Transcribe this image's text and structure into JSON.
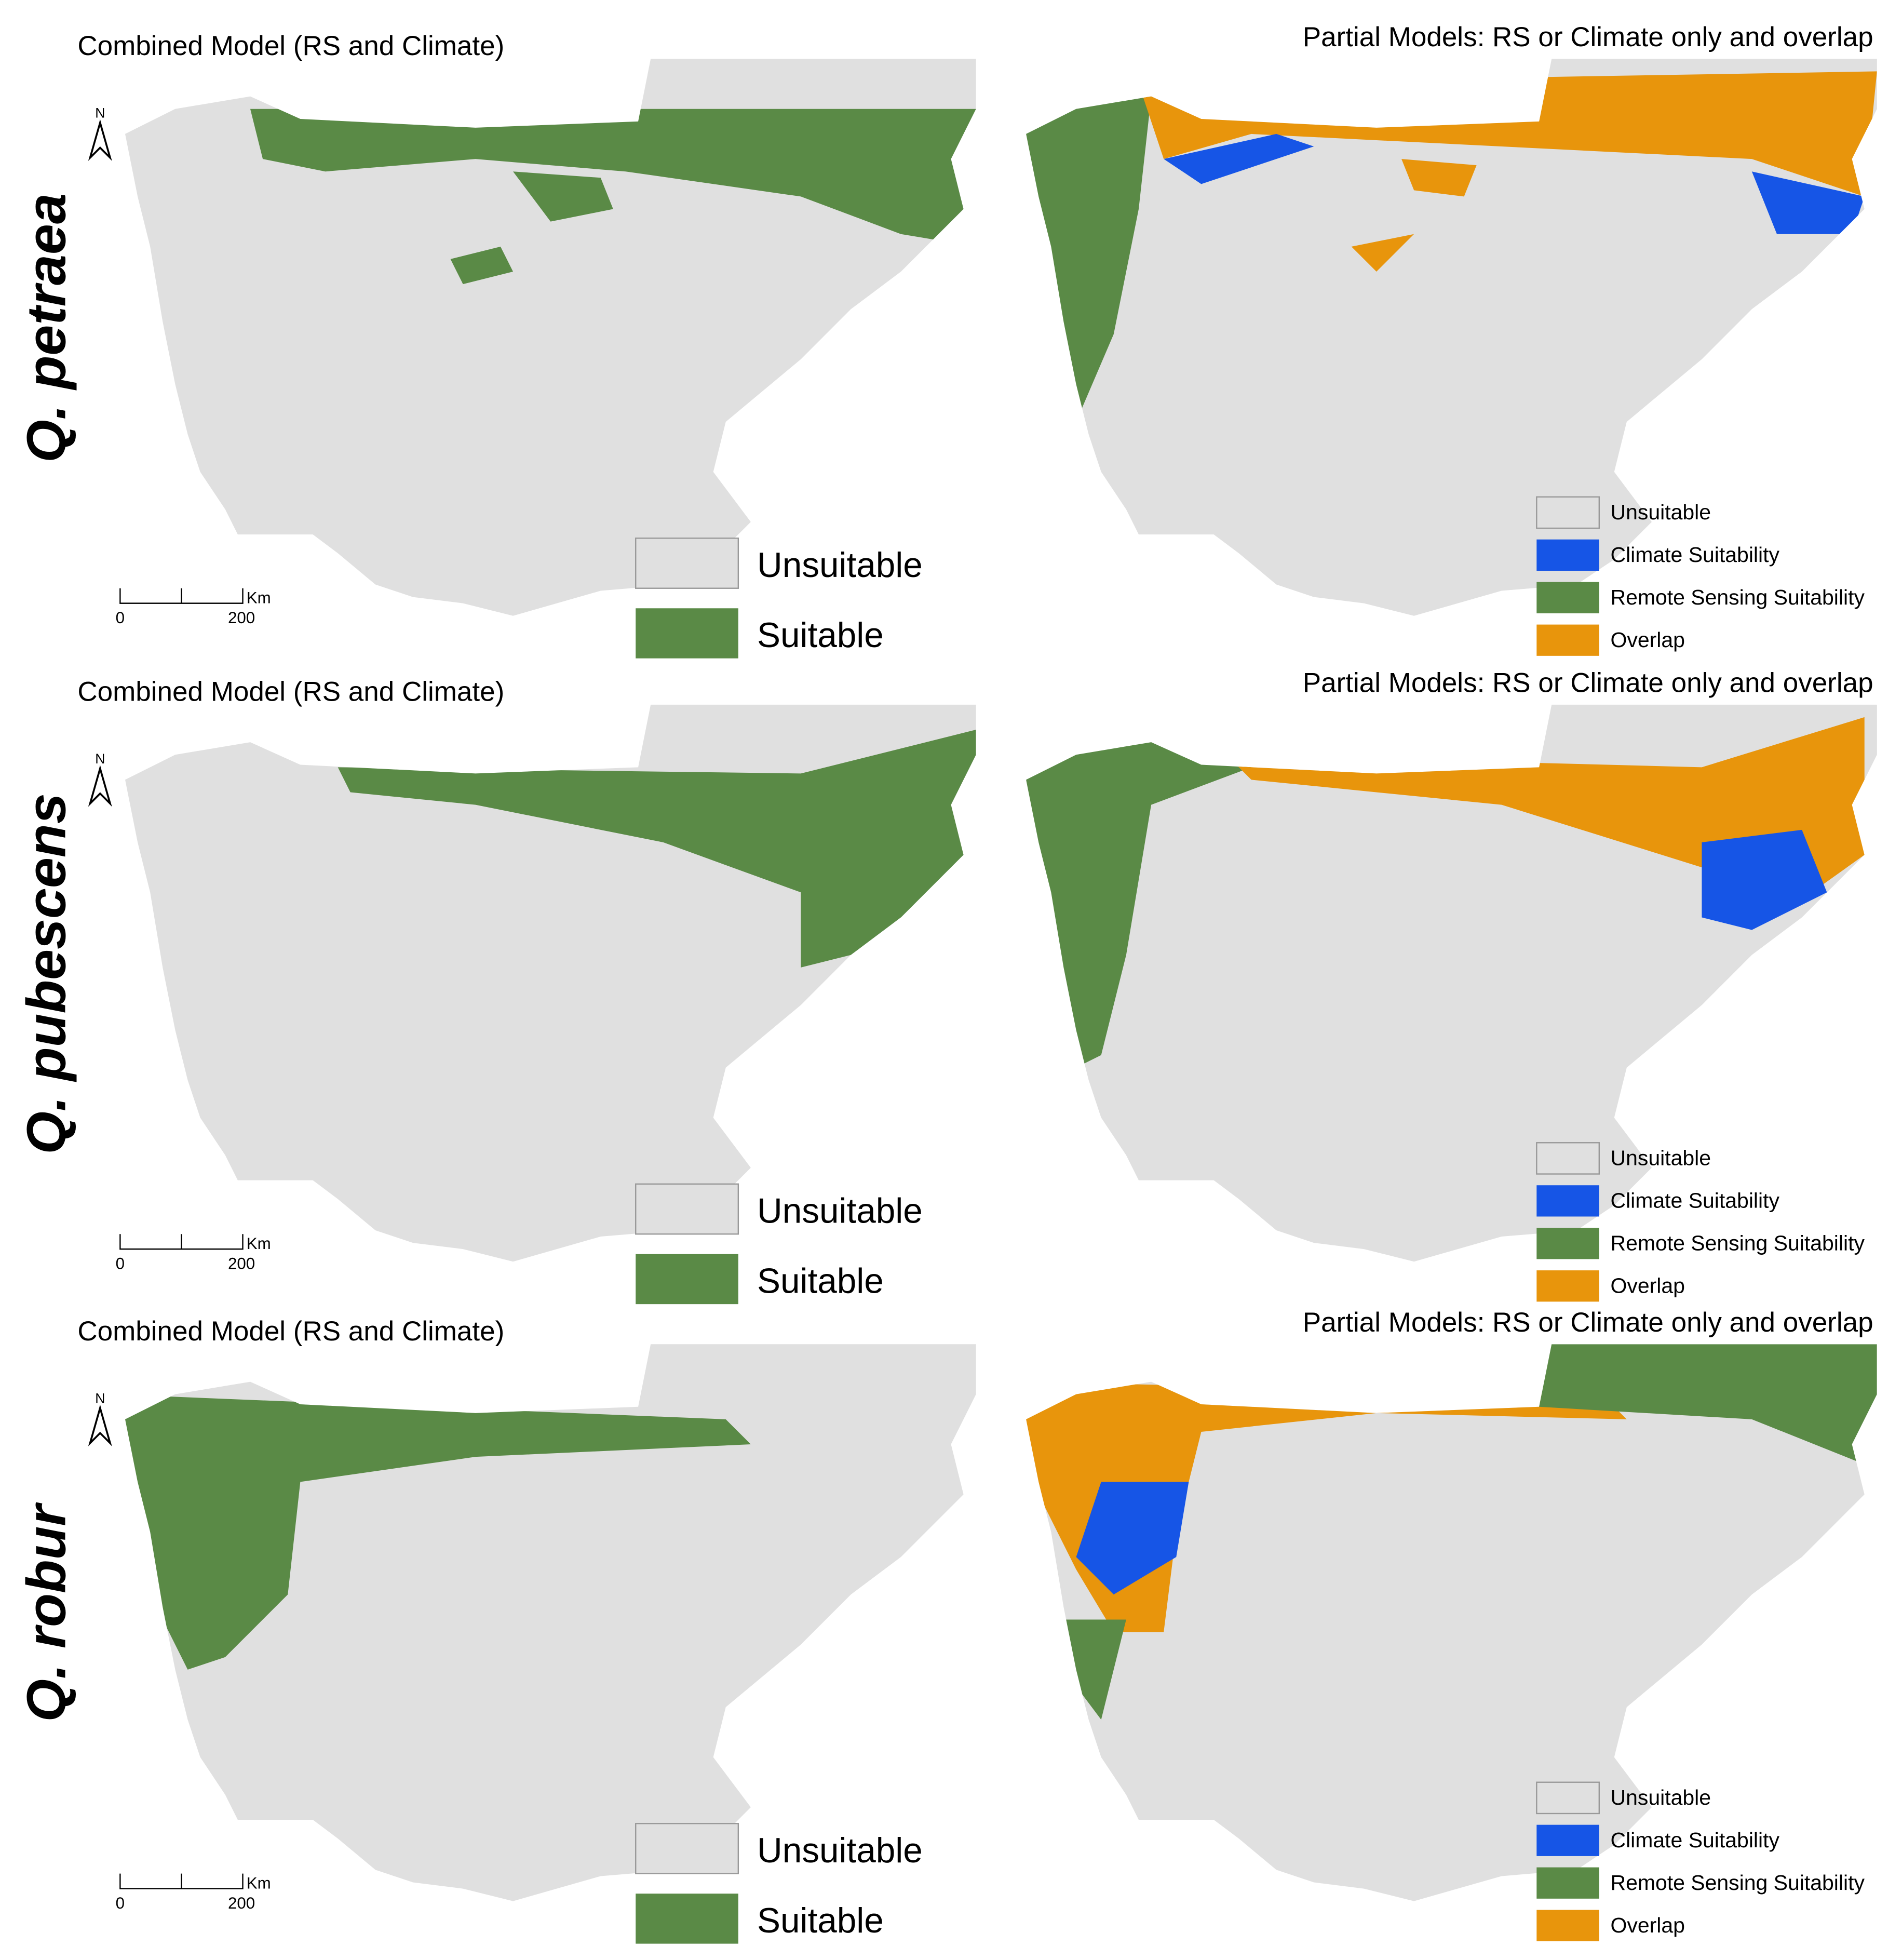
{
  "panels": [
    {
      "species": "Q. petraea",
      "combined": {
        "title": "Combined Model (RS and Climate)",
        "legend": [
          "Unsuitable",
          "Suitable"
        ],
        "scale_bar": {
          "ticks": [
            0,
            200
          ],
          "unit": "Km"
        },
        "north": "N"
      },
      "partial": {
        "title": "Partial Models: RS or Climate only and overlap",
        "legend": [
          "Unsuitable",
          "Climate Suitability",
          "Remote Sensing Suitability",
          "Overlap"
        ]
      }
    },
    {
      "species": "Q. pubescens",
      "combined": {
        "title": "Combined Model (RS and Climate)",
        "legend": [
          "Unsuitable",
          "Suitable"
        ],
        "scale_bar": {
          "ticks": [
            0,
            200
          ],
          "unit": "Km"
        },
        "north": "N"
      },
      "partial": {
        "title": "Partial Models: RS or Climate only and overlap",
        "legend": [
          "Unsuitable",
          "Climate Suitability",
          "Remote Sensing Suitability",
          "Overlap"
        ]
      }
    },
    {
      "species": "Q. robur",
      "combined": {
        "title": "Combined Model (RS and Climate)",
        "legend": [
          "Unsuitable",
          "Suitable"
        ],
        "scale_bar": {
          "ticks": [
            0,
            200
          ],
          "unit": "Km"
        },
        "north": "N"
      },
      "partial": {
        "title": "Partial Models: RS or Climate only and overlap",
        "legend": [
          "Unsuitable",
          "Climate Suitability",
          "Remote Sensing Suitability",
          "Overlap"
        ]
      }
    }
  ]
}
